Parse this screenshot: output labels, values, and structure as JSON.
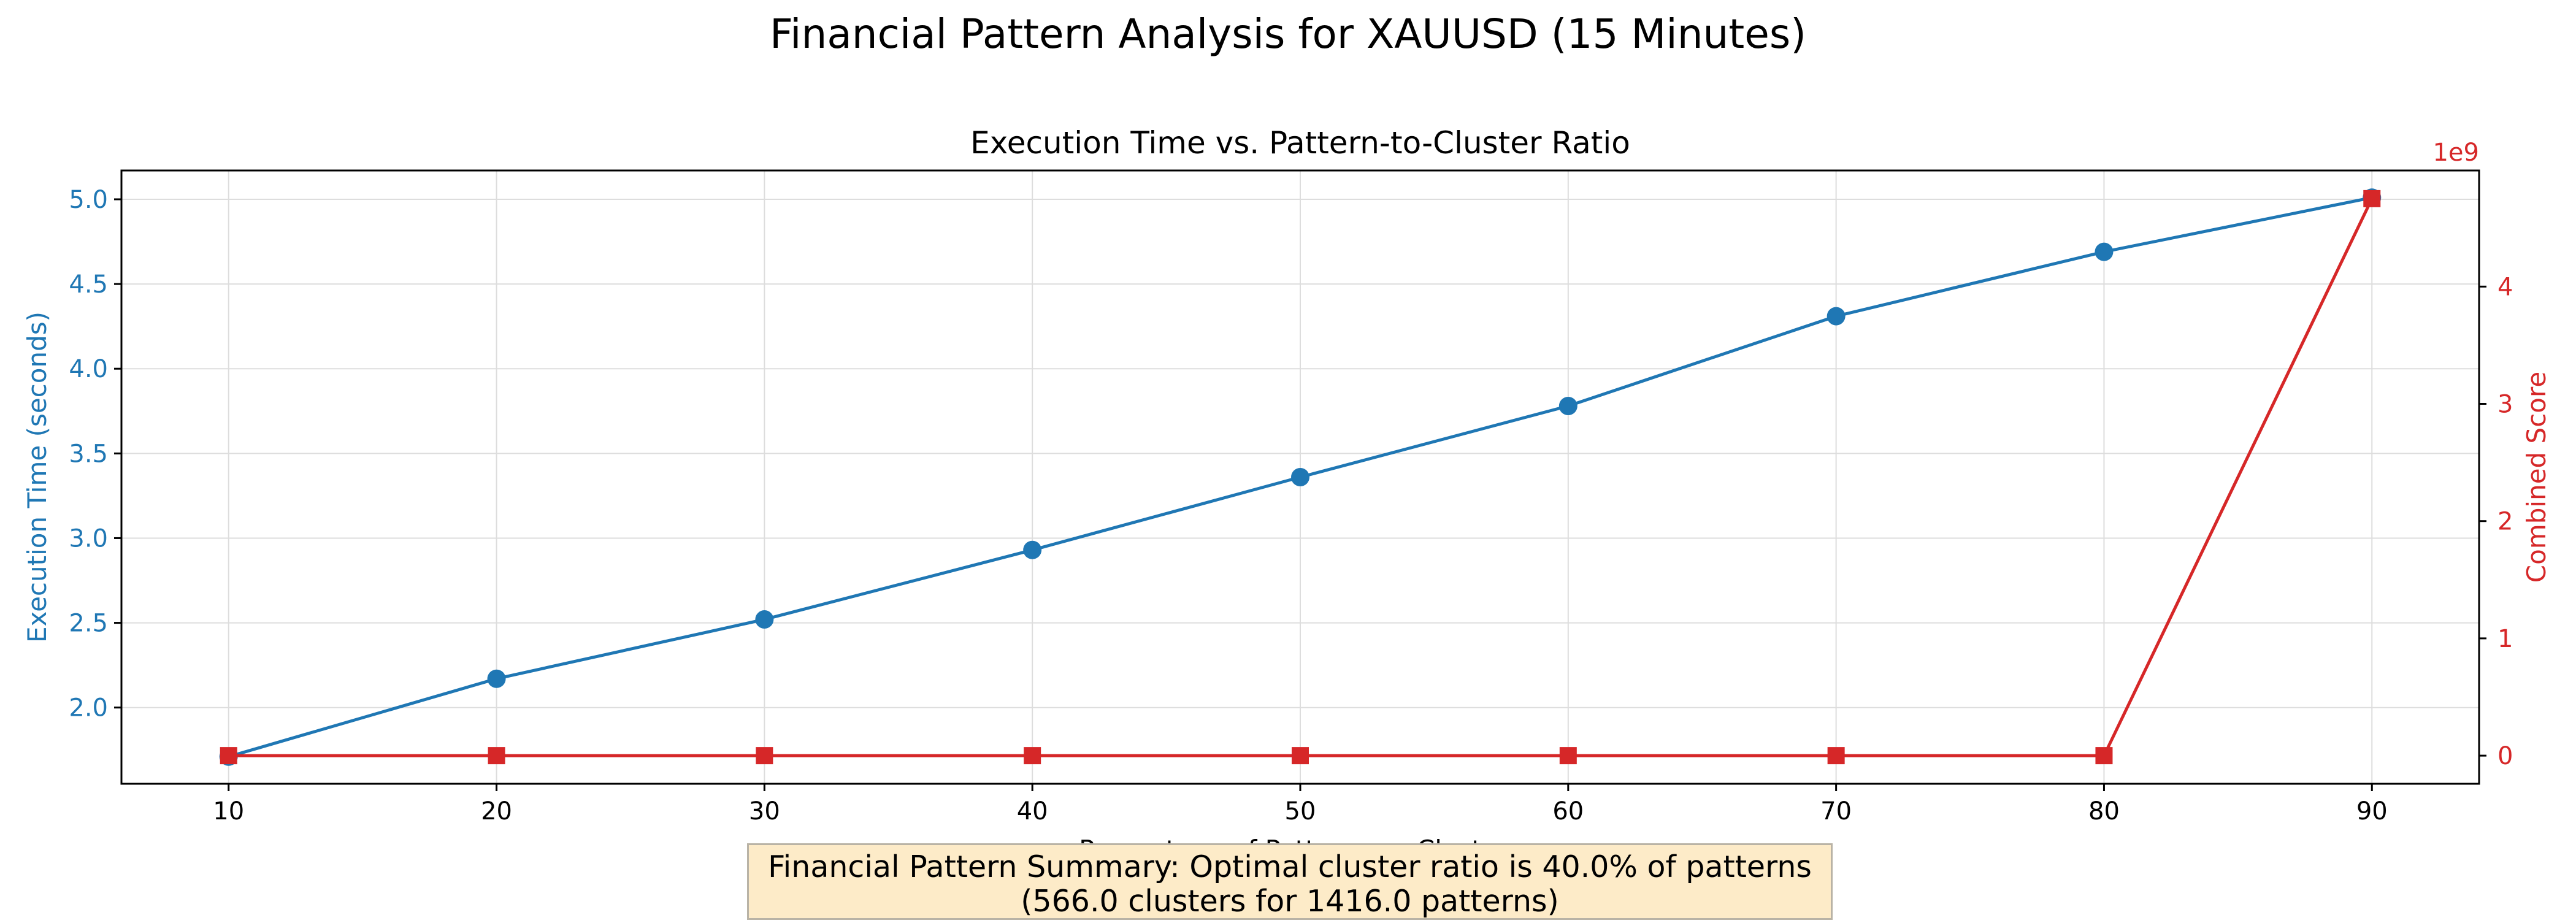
{
  "figure": {
    "suptitle": "Financial Pattern Analysis for XAUUSD (15 Minutes)",
    "summary_line1": "Financial Pattern Summary: Optimal cluster ratio is 40.0% of patterns",
    "summary_line2": "(566.0 clusters for 1416.0 patterns)"
  },
  "chart_data": {
    "type": "line",
    "title": "Execution Time vs. Pattern-to-Cluster Ratio",
    "xlabel": "Percentage of Patterns as Clusters",
    "ylabel_left": "Execution Time (seconds)",
    "ylabel_right": "Combined Score",
    "right_axis_offset_label": "1e9",
    "x": [
      10,
      20,
      30,
      40,
      50,
      60,
      70,
      80,
      90
    ],
    "xlim": [
      6,
      94
    ],
    "xticks": [
      10,
      20,
      30,
      40,
      50,
      60,
      70,
      80,
      90
    ],
    "ylim_left": [
      1.55,
      5.17
    ],
    "yticks_left": [
      2.0,
      2.5,
      3.0,
      3.5,
      4.0,
      4.5,
      5.0
    ],
    "ylim_right": [
      -0.24,
      4.99
    ],
    "yticks_right": [
      0,
      1,
      2,
      3,
      4
    ],
    "grid": true,
    "series": [
      {
        "axis": "left",
        "marker": "circle",
        "color": "#1f77b4",
        "values": [
          1.71,
          2.17,
          2.52,
          2.93,
          3.36,
          3.78,
          4.31,
          4.69,
          5.01
        ]
      },
      {
        "axis": "right",
        "marker": "square",
        "color": "#d62728",
        "values": [
          0,
          0,
          0,
          0,
          0,
          0,
          0,
          0,
          4.75
        ]
      }
    ]
  }
}
